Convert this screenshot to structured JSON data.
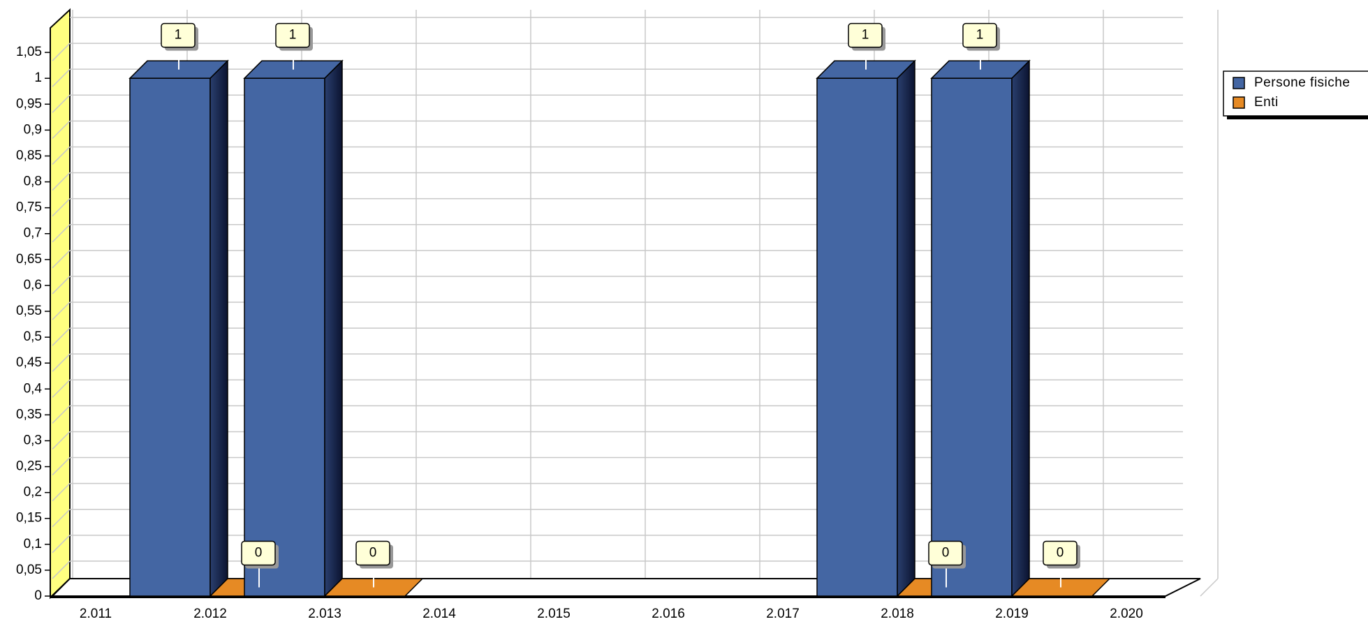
{
  "chart_data": {
    "type": "bar3d",
    "categories": [
      "2.011",
      "2.012",
      "2.013",
      "2.014",
      "2.015",
      "2.016",
      "2.017",
      "2.018",
      "2.019",
      "2.020"
    ],
    "series": [
      {
        "name": "Persone fisiche",
        "color": "#4466a3",
        "values": [
          null,
          1,
          1,
          null,
          null,
          null,
          null,
          1,
          1,
          null
        ]
      },
      {
        "name": "Enti",
        "color": "#e68a24",
        "values": [
          null,
          0,
          0,
          null,
          null,
          null,
          null,
          0,
          0,
          null
        ]
      }
    ],
    "ylim": [
      0,
      1.1
    ],
    "yticks": [
      0,
      {
        "value": 0.05,
        "label": "0,05"
      },
      {
        "value": 0.1,
        "label": "0,1"
      },
      {
        "value": 0.15,
        "label": "0,15"
      },
      {
        "value": 0.2,
        "label": "0,2"
      },
      {
        "value": 0.25,
        "label": "0,25"
      },
      {
        "value": 0.3,
        "label": "0,3"
      },
      {
        "value": 0.35,
        "label": "0,35"
      },
      {
        "value": 0.4,
        "label": "0,4"
      },
      {
        "value": 0.45,
        "label": "0,45"
      },
      {
        "value": 0.5,
        "label": "0,5"
      },
      {
        "value": 0.55,
        "label": "0,55"
      },
      {
        "value": 0.6,
        "label": "0,6"
      },
      {
        "value": 0.65,
        "label": "0,65"
      },
      {
        "value": 0.7,
        "label": "0,7"
      },
      {
        "value": 0.75,
        "label": "0,75"
      },
      {
        "value": 0.8,
        "label": "0,8"
      },
      {
        "value": 0.85,
        "label": "0,85"
      },
      {
        "value": 0.9,
        "label": "0,9"
      },
      {
        "value": 0.95,
        "label": "0,95"
      },
      1,
      {
        "value": 1.05,
        "label": "1,05"
      }
    ],
    "grid": true,
    "legend": "top-right"
  }
}
